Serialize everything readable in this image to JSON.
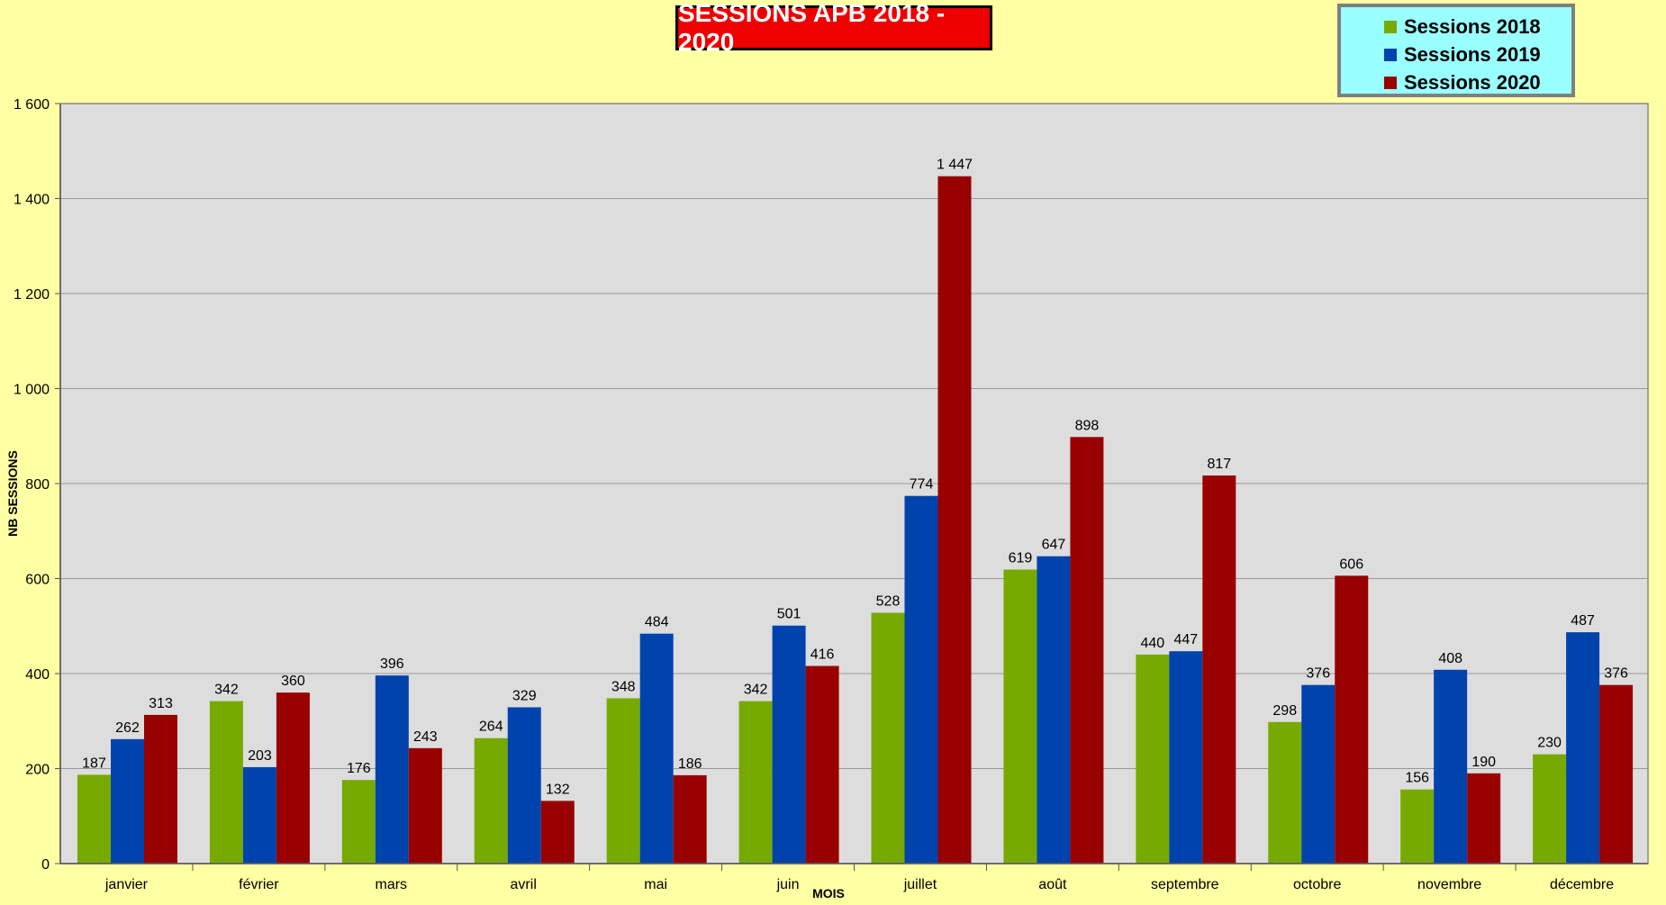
{
  "chart_data": {
    "type": "bar",
    "title": "SESSIONS APB 2018 - 2020",
    "xlabel": "MOIS",
    "ylabel": "NB SESSIONS",
    "ylim": [
      0,
      1600
    ],
    "yticks": [
      0,
      200,
      400,
      600,
      800,
      1000,
      1200,
      1400,
      1600
    ],
    "ytick_labels": [
      "0",
      "200",
      "400",
      "600",
      "800",
      "1 000",
      "1 200",
      "1 400",
      "1 600"
    ],
    "grid": true,
    "legend_position": "top-right",
    "categories": [
      "janvier",
      "février",
      "mars",
      "avril",
      "mai",
      "juin",
      "juillet",
      "août",
      "septembre",
      "octobre",
      "novembre",
      "décembre"
    ],
    "series": [
      {
        "name": "Sessions 2018",
        "color": "#77aa00",
        "values": [
          187,
          342,
          176,
          264,
          348,
          342,
          528,
          619,
          440,
          298,
          156,
          230
        ],
        "labels": [
          "187",
          "342",
          "176",
          "264",
          "348",
          "342",
          "528",
          "619",
          "440",
          "298",
          "156",
          "230"
        ]
      },
      {
        "name": "Sessions 2019",
        "color": "#0043ad",
        "values": [
          262,
          203,
          396,
          329,
          484,
          501,
          774,
          647,
          447,
          376,
          408,
          487
        ],
        "labels": [
          "262",
          "203",
          "396",
          "329",
          "484",
          "501",
          "774",
          "647",
          "447",
          "376",
          "408",
          "487"
        ]
      },
      {
        "name": "Sessions 2020",
        "color": "#990000",
        "values": [
          313,
          360,
          243,
          132,
          186,
          416,
          1447,
          898,
          817,
          606,
          190,
          376
        ],
        "labels": [
          "313",
          "360",
          "243",
          "132",
          "186",
          "416",
          "1 447",
          "898",
          "817",
          "606",
          "190",
          "376"
        ]
      }
    ]
  },
  "colors": {
    "background": "#ffffa3",
    "plot_area": "#dddddd",
    "title_box": "#ee0000",
    "legend_box": "#99ffff"
  }
}
